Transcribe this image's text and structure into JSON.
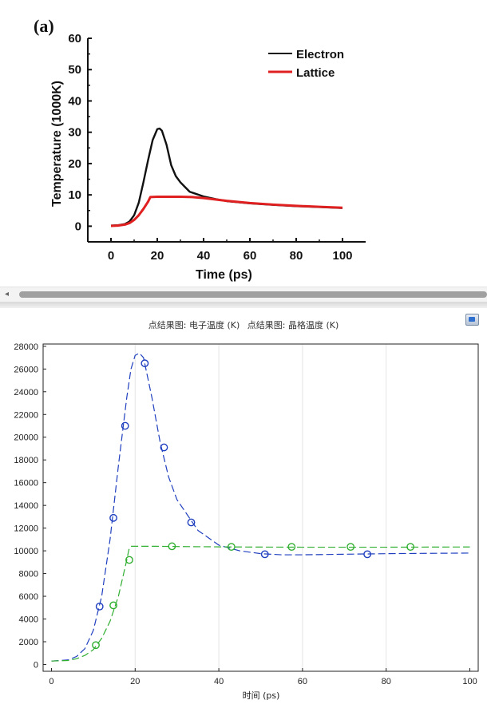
{
  "chart_data": [
    {
      "type": "line",
      "panel_label": "(a)",
      "title": "",
      "xlabel": "Time (ps)",
      "ylabel": "Temperature (1000K)",
      "xlim": [
        -10,
        110
      ],
      "ylim": [
        -5,
        60
      ],
      "xticks": [
        "0",
        "20",
        "40",
        "60",
        "80",
        "100"
      ],
      "yticks": [
        "0",
        "10",
        "20",
        "30",
        "40",
        "50",
        "60"
      ],
      "legend_position": "top-right",
      "series": [
        {
          "name": "Electron",
          "color": "#111111",
          "x": [
            0,
            3,
            6,
            8,
            10,
            12,
            14,
            16,
            18,
            20,
            21,
            22,
            24,
            26,
            28,
            30,
            32,
            34,
            36,
            40,
            45,
            50,
            60,
            70,
            80,
            90,
            100
          ],
          "y": [
            0.2,
            0.3,
            0.7,
            1.5,
            3.5,
            7.5,
            14,
            21,
            27.5,
            31,
            31.2,
            30.5,
            26,
            19.5,
            16,
            14,
            12.5,
            11,
            10.5,
            9.5,
            8.7,
            8.0,
            7.3,
            6.8,
            6.4,
            6.1,
            5.8
          ]
        },
        {
          "name": "Lattice",
          "color": "#e02020",
          "x": [
            0,
            3,
            6,
            8,
            10,
            12,
            14,
            16,
            17,
            20,
            25,
            30,
            35,
            40,
            50,
            60,
            70,
            80,
            90,
            100
          ],
          "y": [
            0.1,
            0.2,
            0.5,
            1.0,
            2.0,
            3.5,
            5.5,
            7.8,
            9.3,
            9.4,
            9.4,
            9.4,
            9.3,
            9.0,
            8.1,
            7.4,
            6.9,
            6.5,
            6.2,
            5.9
          ]
        }
      ]
    },
    {
      "type": "line",
      "title_parts": [
        "点结果图: 电子温度 (K)",
        "点结果图: 晶格温度 (K)"
      ],
      "xlabel": "时间 (ps)",
      "ylabel": "",
      "xlim": [
        -2,
        102
      ],
      "ylim": [
        -600,
        28200
      ],
      "xticks": [
        "0",
        "20",
        "40",
        "60",
        "80",
        "100"
      ],
      "yticks": [
        "0",
        "2000",
        "4000",
        "6000",
        "8000",
        "10000",
        "12000",
        "14000",
        "16000",
        "18000",
        "20000",
        "22000",
        "24000",
        "26000",
        "28000"
      ],
      "series": [
        {
          "name": "电子温度 (K)",
          "color": "#1f3fbf",
          "x": [
            0,
            4,
            6,
            8,
            10,
            12,
            14,
            16,
            18,
            19,
            20,
            21,
            22,
            24,
            26,
            28,
            30,
            35,
            40,
            45,
            50,
            55,
            60,
            70,
            80,
            90,
            100
          ],
          "y": [
            300,
            400,
            700,
            1400,
            3000,
            6000,
            11000,
            17500,
            23500,
            26000,
            27200,
            27400,
            27000,
            23500,
            19500,
            16500,
            14500,
            11800,
            10500,
            10000,
            9750,
            9650,
            9650,
            9700,
            9750,
            9780,
            9800
          ],
          "markers_x": [
            11.5,
            14.8,
            17.6,
            22.3,
            26.9,
            33.4,
            51,
            75.5
          ],
          "markers_y": [
            5100,
            12900,
            21000,
            26500,
            19100,
            12500,
            9700,
            9700
          ]
        },
        {
          "name": "晶格温度 (K)",
          "color": "#2fae2f",
          "x": [
            0,
            4,
            6,
            8,
            10,
            12,
            14,
            16,
            17,
            18,
            18.5,
            19,
            20,
            25,
            30,
            40,
            50,
            60,
            70,
            80,
            90,
            100
          ],
          "y": [
            300,
            350,
            500,
            800,
            1300,
            2300,
            3800,
            6000,
            7600,
            9200,
            10100,
            10400,
            10400,
            10400,
            10380,
            10350,
            10330,
            10320,
            10320,
            10320,
            10330,
            10340
          ],
          "markers_x": [
            10.6,
            14.8,
            18.6,
            28.8,
            43,
            57.4,
            71.5,
            85.8
          ],
          "markers_y": [
            1700,
            5200,
            9200,
            10400,
            10350,
            10350,
            10350,
            10350
          ]
        }
      ]
    }
  ],
  "ui": {
    "scroll_left_glyph": "◂"
  }
}
